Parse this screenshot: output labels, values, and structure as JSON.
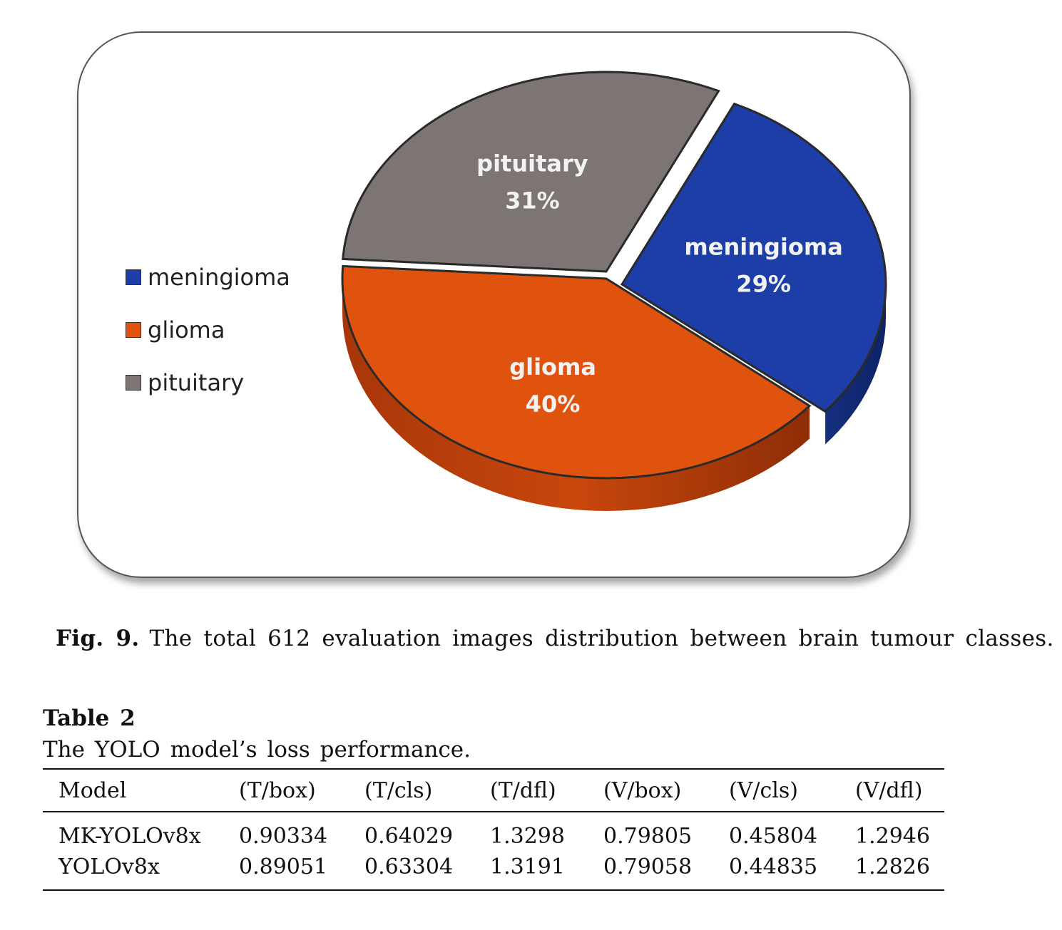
{
  "figure": {
    "chart_data": {
      "type": "pie",
      "categories": [
        "meningioma",
        "glioma",
        "pituitary"
      ],
      "values": [
        29,
        40,
        31
      ],
      "labels": [
        "29%",
        "40%",
        "31%"
      ],
      "colors": [
        "#1c3ea6",
        "#e0530f",
        "#7d7474"
      ],
      "legend": {
        "position": "left",
        "entries": [
          "meningioma",
          "glioma",
          "pituitary"
        ]
      },
      "style": "3d-exploded"
    },
    "caption_label": "Fig. 9.",
    "caption_text": "The total 612 evaluation images distribution between brain tumour classes."
  },
  "table": {
    "title": "Table 2",
    "subtitle": "The YOLO model’s loss performance.",
    "headers": [
      "Model",
      "(T/box)",
      "(T/cls)",
      "(T/dfl)",
      "(V/box)",
      "(V/cls)",
      "(V/dfl)"
    ],
    "rows": [
      [
        "MK-YOLOv8x",
        "0.90334",
        "0.64029",
        "1.3298",
        "0.79805",
        "0.45804",
        "1.2946"
      ],
      [
        "YOLOv8x",
        "0.89051",
        "0.63304",
        "1.3191",
        "0.79058",
        "0.44835",
        "1.2826"
      ]
    ]
  }
}
